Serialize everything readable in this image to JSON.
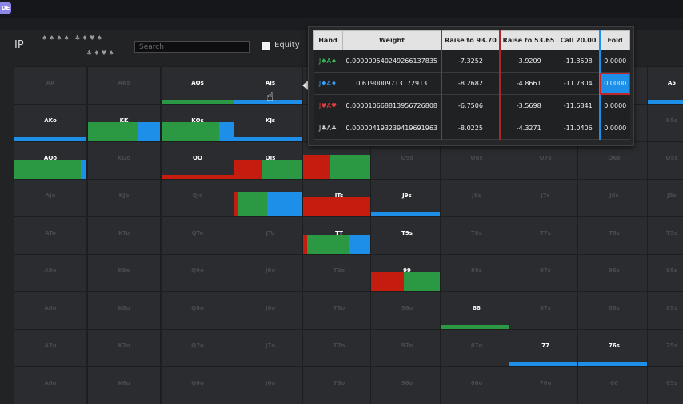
{
  "app": {
    "badge": "DE"
  },
  "toolbar": {
    "panel_label": "IP",
    "suits_row1": "♠♠♠♠ ♣♦♥♠",
    "suits_row2": "♣♦♥♠",
    "search_placeholder": "Search",
    "equity_label": "Equity"
  },
  "colors": {
    "raise_big": "#c41d10",
    "raise_small": "#2b9944",
    "call": "#2b9944",
    "fold": "#1e8fe8"
  },
  "grid_rows": [
    [
      {
        "id": "AA"
      },
      {
        "id": "AKs"
      },
      {
        "id": "AQs",
        "label": "AQs",
        "mix": [
          {
            "c": "green",
            "w": 1
          }
        ]
      },
      {
        "id": "AJs",
        "label": "AJs",
        "mix": [
          {
            "c": "blue",
            "w": 1
          }
        ]
      },
      {
        "id": "ATs"
      },
      {
        "id": "A9s"
      },
      {
        "id": "A8s"
      },
      {
        "id": "A7s"
      },
      {
        "id": "A6s"
      },
      {
        "id": "A5s",
        "label": "A5",
        "mix": [
          {
            "c": "blue",
            "w": 1
          }
        ]
      }
    ],
    [
      {
        "id": "AKo",
        "label": "AKo",
        "mix": [
          {
            "c": "blue",
            "w": 1
          }
        ]
      },
      {
        "id": "KK",
        "label": "KK",
        "mix": [
          {
            "c": "green",
            "w": 0.7
          },
          {
            "c": "blue",
            "w": 0.3
          }
        ],
        "big": true
      },
      {
        "id": "KQs",
        "label": "KQs",
        "mix": [
          {
            "c": "green",
            "w": 0.8
          },
          {
            "c": "blue",
            "w": 0.2
          }
        ],
        "big": true
      },
      {
        "id": "KJs",
        "label": "KJs",
        "mix": [
          {
            "c": "blue",
            "w": 1
          }
        ]
      },
      {
        "id": "KTs"
      },
      {
        "id": "K9s"
      },
      {
        "id": "K8s"
      },
      {
        "id": "K7s"
      },
      {
        "id": "K6s"
      },
      {
        "id": "K5s"
      }
    ],
    [
      {
        "id": "AQo",
        "label": "AQo",
        "mix": [
          {
            "c": "green",
            "w": 0.92
          },
          {
            "c": "blue",
            "w": 0.08
          }
        ],
        "big": true
      },
      {
        "id": "KQo"
      },
      {
        "id": "QQ",
        "label": "QQ",
        "mix": [
          {
            "c": "red",
            "w": 1
          }
        ]
      },
      {
        "id": "QJs",
        "label": "QJs",
        "mix": [
          {
            "c": "red",
            "w": 0.38
          },
          {
            "c": "green",
            "w": 0.62
          }
        ],
        "big": true
      },
      {
        "id": "QTs",
        "label": "QTs",
        "mix": [
          {
            "c": "red",
            "w": 0.38
          },
          {
            "c": "green",
            "w": 0.62
          }
        ],
        "big": true,
        "tall": true
      },
      {
        "id": "Q9s"
      },
      {
        "id": "Q8s"
      },
      {
        "id": "Q7s"
      },
      {
        "id": "Q6s"
      },
      {
        "id": "Q5s"
      }
    ],
    [
      {
        "id": "AJo"
      },
      {
        "id": "KJo"
      },
      {
        "id": "QJo"
      },
      {
        "id": "JJ",
        "label": "JJ",
        "mix": [
          {
            "c": "red",
            "w": 0.05
          },
          {
            "c": "green",
            "w": 0.4
          },
          {
            "c": "blue",
            "w": 0.55
          }
        ],
        "big": true,
        "tall": true
      },
      {
        "id": "JTs",
        "label": "JTs",
        "mix": [
          {
            "c": "red",
            "w": 1
          }
        ],
        "big": true
      },
      {
        "id": "J9s",
        "label": "J9s",
        "mix": [
          {
            "c": "blue",
            "w": 1
          }
        ]
      },
      {
        "id": "J8s"
      },
      {
        "id": "J7s"
      },
      {
        "id": "J6s"
      },
      {
        "id": "J5s"
      }
    ],
    [
      {
        "id": "ATo"
      },
      {
        "id": "KTo"
      },
      {
        "id": "QTo"
      },
      {
        "id": "JTo"
      },
      {
        "id": "TT",
        "label": "TT",
        "mix": [
          {
            "c": "red",
            "w": 0.05
          },
          {
            "c": "green",
            "w": 0.58
          },
          {
            "c": "blue",
            "w": 0.37
          }
        ],
        "big": true
      },
      {
        "id": "T9s",
        "label": "T9s"
      },
      {
        "id": "T8s"
      },
      {
        "id": "T7s"
      },
      {
        "id": "T6s"
      },
      {
        "id": "T5s"
      }
    ],
    [
      {
        "id": "A9o"
      },
      {
        "id": "K9o"
      },
      {
        "id": "Q9o"
      },
      {
        "id": "J9o"
      },
      {
        "id": "T9o"
      },
      {
        "id": "99",
        "label": "99",
        "mix": [
          {
            "c": "red",
            "w": 0.45
          },
          {
            "c": "green",
            "w": 0.55
          }
        ],
        "big": true
      },
      {
        "id": "98s"
      },
      {
        "id": "97s"
      },
      {
        "id": "96s"
      },
      {
        "id": "95s"
      }
    ],
    [
      {
        "id": "A8o"
      },
      {
        "id": "K8o"
      },
      {
        "id": "Q8o"
      },
      {
        "id": "J8o"
      },
      {
        "id": "T8o"
      },
      {
        "id": "98o"
      },
      {
        "id": "88",
        "label": "88",
        "mix": [
          {
            "c": "green",
            "w": 1
          }
        ]
      },
      {
        "id": "87s"
      },
      {
        "id": "86s"
      },
      {
        "id": "85s"
      }
    ],
    [
      {
        "id": "A7o"
      },
      {
        "id": "K7o"
      },
      {
        "id": "Q7o"
      },
      {
        "id": "J7o"
      },
      {
        "id": "T7o"
      },
      {
        "id": "97o"
      },
      {
        "id": "87o"
      },
      {
        "id": "77",
        "label": "77",
        "mix": [
          {
            "c": "blue",
            "w": 1
          }
        ]
      },
      {
        "id": "76s",
        "label": "76s",
        "mix": [
          {
            "c": "blue",
            "w": 1
          }
        ]
      },
      {
        "id": "75s"
      }
    ],
    [
      {
        "id": "A6o"
      },
      {
        "id": "K6o"
      },
      {
        "id": "Q6o"
      },
      {
        "id": "J6o"
      },
      {
        "id": "T6o"
      },
      {
        "id": "96o"
      },
      {
        "id": "86o"
      },
      {
        "id": "76o"
      },
      {
        "id": "66"
      },
      {
        "id": "65s"
      }
    ]
  ],
  "popup": {
    "headers": [
      "Hand",
      "Weight",
      "Raise to 93.70",
      "Raise to 53.65",
      "Call 20.00",
      "Fold"
    ],
    "rows": [
      {
        "hand": "J♠A♠",
        "weight": "0.0000095402492661378​35",
        "r1": "-7.3252",
        "r2": "-3.9209",
        "call": "-11.8598",
        "fold": "0.0000"
      },
      {
        "hand": "J♦A♦",
        "weight": "0.6190009713172913",
        "r1": "-8.2682",
        "r2": "-4.8661",
        "call": "-11.7304",
        "fold": "0.0000",
        "highlight": true
      },
      {
        "hand": "J♥A♥",
        "weight": "0.0000106688139567268​08",
        "r1": "-6.7506",
        "r2": "-3.5698",
        "call": "-11.6841",
        "fold": "0.0000"
      },
      {
        "hand": "J♣A♣",
        "weight": "0.0000041932394196919​63",
        "r1": "-8.0225",
        "r2": "-4.3271",
        "call": "-11.0406",
        "fold": "0.0000"
      }
    ]
  }
}
